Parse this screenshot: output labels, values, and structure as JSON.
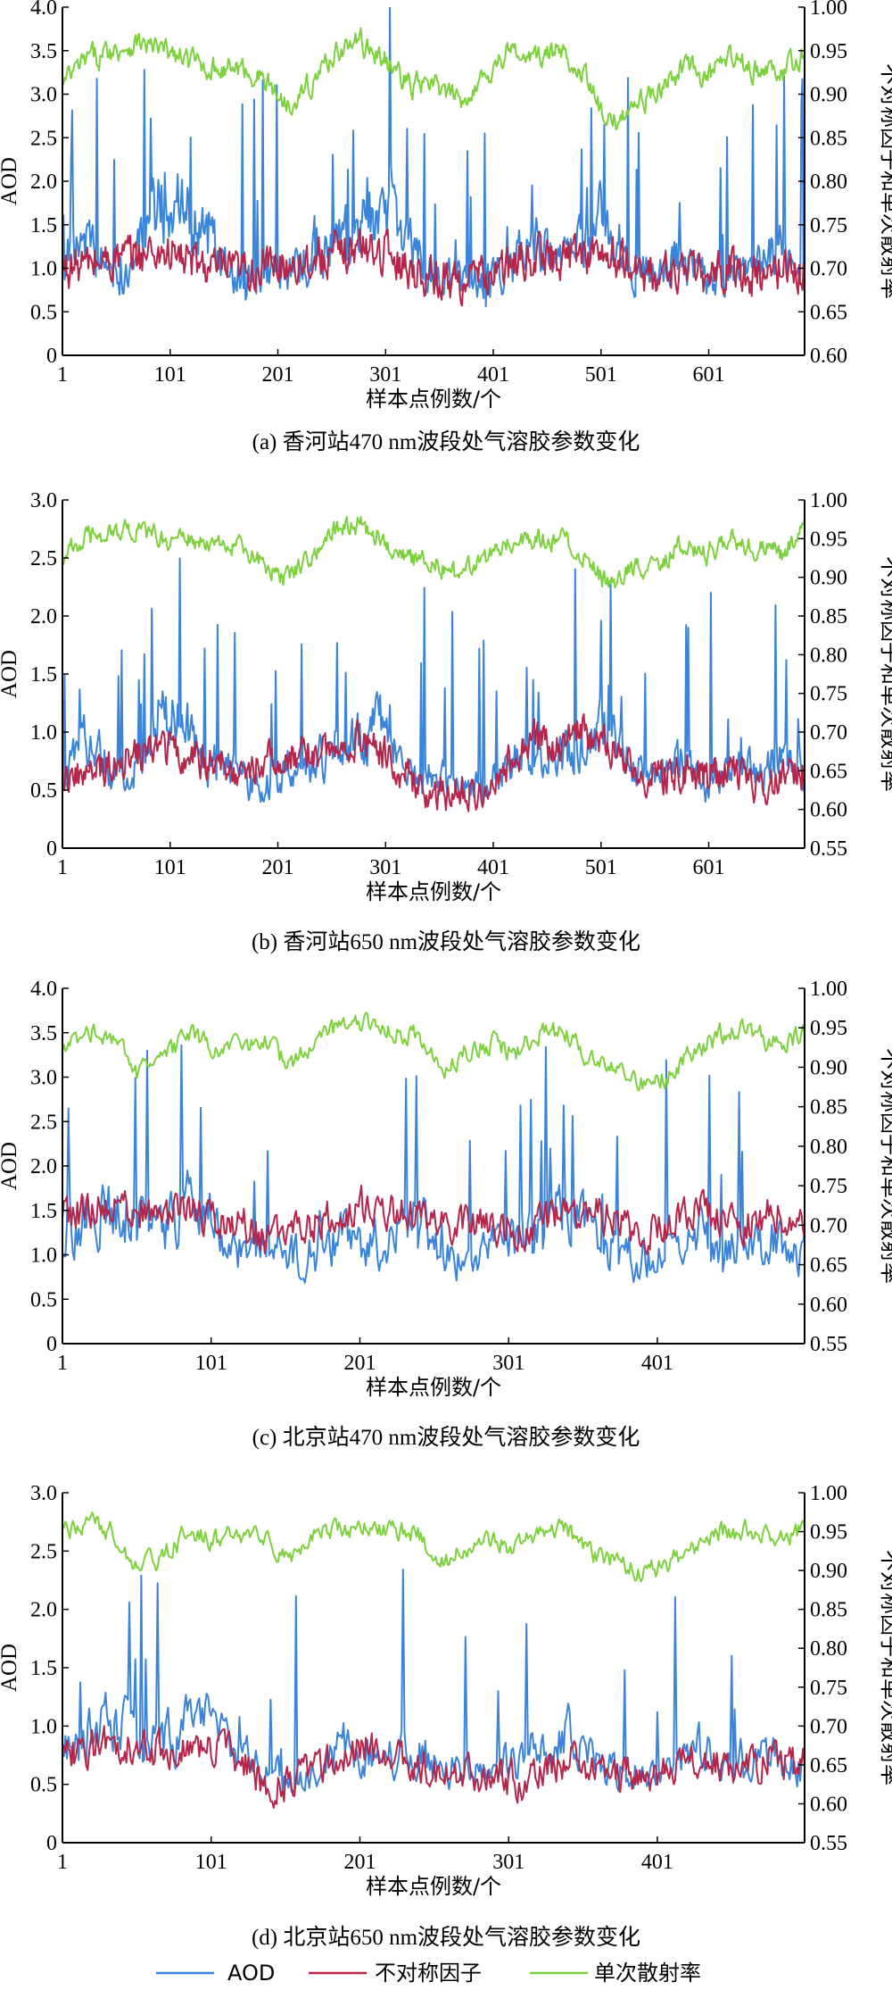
{
  "legend": [
    {
      "name": "AOD",
      "color": "#3a84d9"
    },
    {
      "name": "不对称因子",
      "color": "#b5264a"
    },
    {
      "name": "单次散射率",
      "color": "#7ed13e"
    }
  ],
  "chart_data": [
    {
      "type": "line",
      "title": "(a) 香河站470 nm波段处气溶胶参数变化",
      "xlabel": "样本点例数/个",
      "ylabel": "AOD",
      "y2label": "不对称因子和单次散射率",
      "xlim": [
        1,
        690
      ],
      "xticks": [
        "1",
        "101",
        "201",
        "301",
        "401",
        "501",
        "601"
      ],
      "ylim": [
        0,
        4.0
      ],
      "yticks": [
        "0",
        "0.5",
        "1.0",
        "1.5",
        "2.0",
        "2.5",
        "3.0",
        "3.5",
        "4.0"
      ],
      "y2lim": [
        0.6,
        1.0
      ],
      "y2ticks": [
        "0.60",
        "0.65",
        "0.70",
        "0.75",
        "0.80",
        "0.85",
        "0.90",
        "0.95",
        "1.00"
      ],
      "series": [
        {
          "name": "AOD",
          "axis": "left",
          "color": "#3a84d9",
          "x": [
            1,
            24,
            47,
            70,
            93,
            116,
            139,
            162,
            185,
            208,
            231,
            254,
            277,
            300,
            323,
            346,
            369,
            392,
            415,
            438,
            461,
            484,
            507,
            530,
            553,
            576,
            599,
            622,
            645,
            668,
            690
          ],
          "values": [
            0.9,
            1.3,
            0.8,
            1.1,
            1.7,
            1.6,
            1.2,
            0.9,
            0.8,
            0.9,
            1.1,
            1.2,
            1.4,
            1.7,
            1.2,
            0.9,
            0.8,
            0.8,
            1.0,
            1.2,
            1.0,
            1.3,
            1.5,
            1.0,
            0.9,
            1.1,
            0.8,
            1.0,
            0.9,
            1.2,
            0.9
          ]
        },
        {
          "name": "不对称因子",
          "axis": "right",
          "color": "#b5264a",
          "x": [
            1,
            24,
            47,
            70,
            93,
            116,
            139,
            162,
            185,
            208,
            231,
            254,
            277,
            300,
            323,
            346,
            369,
            392,
            415,
            438,
            461,
            484,
            507,
            530,
            553,
            576,
            599,
            622,
            645,
            668,
            690
          ],
          "values": [
            0.7,
            0.705,
            0.71,
            0.715,
            0.72,
            0.71,
            0.7,
            0.695,
            0.7,
            0.705,
            0.71,
            0.715,
            0.725,
            0.72,
            0.7,
            0.69,
            0.685,
            0.69,
            0.7,
            0.715,
            0.71,
            0.72,
            0.715,
            0.7,
            0.69,
            0.7,
            0.69,
            0.7,
            0.69,
            0.7,
            0.695
          ]
        },
        {
          "name": "单次散射率",
          "axis": "right",
          "color": "#7ed13e",
          "x": [
            1,
            24,
            47,
            70,
            93,
            116,
            139,
            162,
            185,
            208,
            231,
            254,
            277,
            300,
            323,
            346,
            369,
            392,
            415,
            438,
            461,
            484,
            507,
            530,
            553,
            576,
            599,
            622,
            645,
            668,
            690
          ],
          "values": [
            0.91,
            0.94,
            0.95,
            0.96,
            0.95,
            0.94,
            0.93,
            0.93,
            0.92,
            0.89,
            0.91,
            0.95,
            0.96,
            0.94,
            0.91,
            0.91,
            0.89,
            0.92,
            0.95,
            0.94,
            0.95,
            0.93,
            0.86,
            0.89,
            0.9,
            0.93,
            0.92,
            0.94,
            0.93,
            0.92,
            0.95
          ]
        }
      ]
    },
    {
      "type": "line",
      "title": "(b) 香河站650 nm波段处气溶胶参数变化",
      "xlabel": "样本点例数/个",
      "ylabel": "AOD",
      "y2label": "不对称因子和单次散射率",
      "xlim": [
        1,
        690
      ],
      "xticks": [
        "1",
        "101",
        "201",
        "301",
        "401",
        "501",
        "601"
      ],
      "ylim": [
        0,
        3.0
      ],
      "yticks": [
        "0",
        "0.5",
        "1.0",
        "1.5",
        "2.0",
        "2.5",
        "3.0"
      ],
      "y2lim": [
        0.55,
        1.0
      ],
      "y2ticks": [
        "0.55",
        "0.60",
        "0.65",
        "0.70",
        "0.75",
        "0.80",
        "0.85",
        "0.90",
        "0.95",
        "1.00"
      ],
      "series": [
        {
          "name": "AOD",
          "axis": "left",
          "color": "#3a84d9",
          "x": [
            1,
            24,
            47,
            70,
            93,
            116,
            139,
            162,
            185,
            208,
            231,
            254,
            277,
            300,
            323,
            346,
            369,
            392,
            415,
            438,
            461,
            484,
            507,
            530,
            553,
            576,
            599,
            622,
            645,
            668,
            690
          ],
          "values": [
            0.6,
            0.9,
            0.6,
            0.7,
            1.1,
            1.0,
            0.7,
            0.6,
            0.5,
            0.6,
            0.7,
            0.8,
            0.9,
            1.1,
            0.7,
            0.6,
            0.5,
            0.5,
            0.7,
            0.8,
            0.7,
            0.9,
            1.0,
            0.7,
            0.6,
            0.7,
            0.5,
            0.7,
            0.6,
            0.8,
            0.6
          ]
        },
        {
          "name": "不对称因子",
          "axis": "right",
          "color": "#b5264a",
          "x": [
            1,
            24,
            47,
            70,
            93,
            116,
            139,
            162,
            185,
            208,
            231,
            254,
            277,
            300,
            323,
            346,
            369,
            392,
            415,
            438,
            461,
            484,
            507,
            530,
            553,
            576,
            599,
            622,
            645,
            668,
            690
          ],
          "values": [
            0.65,
            0.64,
            0.66,
            0.67,
            0.68,
            0.67,
            0.66,
            0.65,
            0.66,
            0.67,
            0.67,
            0.68,
            0.69,
            0.67,
            0.64,
            0.62,
            0.62,
            0.63,
            0.66,
            0.69,
            0.68,
            0.7,
            0.68,
            0.65,
            0.64,
            0.65,
            0.64,
            0.65,
            0.63,
            0.64,
            0.65
          ]
        },
        {
          "name": "单次散射率",
          "axis": "right",
          "color": "#7ed13e",
          "x": [
            1,
            24,
            47,
            70,
            93,
            116,
            139,
            162,
            185,
            208,
            231,
            254,
            277,
            300,
            323,
            346,
            369,
            392,
            415,
            438,
            461,
            484,
            507,
            530,
            553,
            576,
            599,
            622,
            645,
            668,
            690
          ],
          "values": [
            0.93,
            0.95,
            0.96,
            0.96,
            0.95,
            0.95,
            0.94,
            0.94,
            0.92,
            0.9,
            0.93,
            0.96,
            0.97,
            0.95,
            0.92,
            0.92,
            0.9,
            0.92,
            0.95,
            0.95,
            0.95,
            0.93,
            0.89,
            0.91,
            0.92,
            0.94,
            0.93,
            0.95,
            0.94,
            0.93,
            0.96
          ]
        }
      ]
    },
    {
      "type": "line",
      "title": "(c) 北京站470 nm波段处气溶胶参数变化",
      "xlabel": "样本点例数/个",
      "ylabel": "AOD",
      "y2label": "不对称因子和单次散射率",
      "xlim": [
        1,
        500
      ],
      "xticks": [
        "1",
        "101",
        "201",
        "301",
        "401"
      ],
      "ylim": [
        0,
        4.0
      ],
      "yticks": [
        "0",
        "0.5",
        "1.0",
        "1.5",
        "2.0",
        "2.5",
        "3.0",
        "3.5",
        "4.0"
      ],
      "y2lim": [
        0.55,
        1.0
      ],
      "y2ticks": [
        "0.55",
        "0.60",
        "0.65",
        "0.70",
        "0.75",
        "0.80",
        "0.85",
        "0.90",
        "0.95",
        "1.00"
      ],
      "series": [
        {
          "name": "AOD",
          "axis": "left",
          "color": "#3a84d9",
          "x": [
            1,
            18,
            35,
            52,
            69,
            86,
            103,
            120,
            137,
            154,
            171,
            188,
            205,
            222,
            239,
            256,
            273,
            290,
            307,
            324,
            341,
            358,
            375,
            392,
            409,
            426,
            443,
            460,
            477,
            500
          ],
          "values": [
            1.1,
            1.4,
            1.5,
            1.3,
            1.2,
            1.5,
            1.3,
            1.0,
            1.0,
            0.9,
            1.0,
            1.2,
            1.1,
            1.1,
            1.3,
            1.0,
            0.9,
            1.0,
            1.1,
            1.2,
            1.4,
            1.1,
            1.0,
            0.9,
            1.0,
            1.2,
            1.1,
            1.0,
            1.1,
            1.0
          ]
        },
        {
          "name": "不对称因子",
          "axis": "right",
          "color": "#b5264a",
          "x": [
            1,
            18,
            35,
            52,
            69,
            86,
            103,
            120,
            137,
            154,
            171,
            188,
            205,
            222,
            239,
            256,
            273,
            290,
            307,
            324,
            341,
            358,
            375,
            392,
            409,
            426,
            443,
            460,
            477,
            500
          ],
          "values": [
            0.71,
            0.72,
            0.725,
            0.72,
            0.715,
            0.715,
            0.71,
            0.705,
            0.68,
            0.69,
            0.7,
            0.715,
            0.725,
            0.72,
            0.71,
            0.705,
            0.7,
            0.7,
            0.69,
            0.705,
            0.72,
            0.715,
            0.705,
            0.69,
            0.7,
            0.72,
            0.71,
            0.7,
            0.715,
            0.71
          ]
        },
        {
          "name": "单次散射率",
          "axis": "right",
          "color": "#7ed13e",
          "x": [
            1,
            18,
            35,
            52,
            69,
            86,
            103,
            120,
            137,
            154,
            171,
            188,
            205,
            222,
            239,
            256,
            273,
            290,
            307,
            324,
            341,
            358,
            375,
            392,
            409,
            426,
            443,
            460,
            477,
            500
          ],
          "values": [
            0.92,
            0.95,
            0.94,
            0.89,
            0.91,
            0.94,
            0.93,
            0.92,
            0.93,
            0.9,
            0.94,
            0.95,
            0.96,
            0.95,
            0.94,
            0.9,
            0.92,
            0.93,
            0.92,
            0.95,
            0.94,
            0.91,
            0.9,
            0.88,
            0.89,
            0.92,
            0.94,
            0.95,
            0.93,
            0.94
          ]
        }
      ]
    },
    {
      "type": "line",
      "title": "(d) 北京站650 nm波段处气溶胶参数变化",
      "xlabel": "样本点例数/个",
      "ylabel": "AOD",
      "y2label": "不对称因子和单次散射率",
      "xlim": [
        1,
        500
      ],
      "xticks": [
        "1",
        "101",
        "201",
        "301",
        "401"
      ],
      "ylim": [
        0,
        3.0
      ],
      "yticks": [
        "0",
        "0.5",
        "1.0",
        "1.5",
        "2.0",
        "2.5",
        "3.0"
      ],
      "y2lim": [
        0.55,
        1.0
      ],
      "y2ticks": [
        "0.55",
        "0.60",
        "0.65",
        "0.70",
        "0.75",
        "0.80",
        "0.85",
        "0.90",
        "0.95",
        "1.00"
      ],
      "series": [
        {
          "name": "AOD",
          "axis": "left",
          "color": "#3a84d9",
          "x": [
            1,
            18,
            35,
            52,
            69,
            86,
            103,
            120,
            137,
            154,
            171,
            188,
            205,
            222,
            239,
            256,
            273,
            290,
            307,
            324,
            341,
            358,
            375,
            392,
            409,
            426,
            443,
            460,
            477,
            500
          ],
          "values": [
            0.7,
            0.9,
            1.0,
            0.9,
            0.8,
            1.0,
            0.9,
            0.7,
            0.6,
            0.5,
            0.6,
            0.8,
            0.7,
            0.7,
            0.8,
            0.6,
            0.6,
            0.6,
            0.7,
            0.8,
            0.9,
            0.7,
            0.6,
            0.6,
            0.6,
            0.8,
            0.7,
            0.6,
            0.7,
            0.6
          ]
        },
        {
          "name": "不对称因子",
          "axis": "right",
          "color": "#b5264a",
          "x": [
            1,
            18,
            35,
            52,
            69,
            86,
            103,
            120,
            137,
            154,
            171,
            188,
            205,
            222,
            239,
            256,
            273,
            290,
            307,
            324,
            341,
            358,
            375,
            392,
            409,
            426,
            443,
            460,
            477,
            500
          ],
          "values": [
            0.66,
            0.67,
            0.68,
            0.67,
            0.67,
            0.68,
            0.67,
            0.66,
            0.62,
            0.63,
            0.65,
            0.66,
            0.67,
            0.66,
            0.65,
            0.64,
            0.64,
            0.64,
            0.63,
            0.64,
            0.66,
            0.65,
            0.64,
            0.63,
            0.64,
            0.66,
            0.65,
            0.64,
            0.66,
            0.65
          ]
        },
        {
          "name": "单次散射率",
          "axis": "right",
          "color": "#7ed13e",
          "x": [
            1,
            18,
            35,
            52,
            69,
            86,
            103,
            120,
            137,
            154,
            171,
            188,
            205,
            222,
            239,
            256,
            273,
            290,
            307,
            324,
            341,
            358,
            375,
            392,
            409,
            426,
            443,
            460,
            477,
            500
          ],
          "values": [
            0.95,
            0.96,
            0.95,
            0.9,
            0.92,
            0.95,
            0.94,
            0.94,
            0.94,
            0.91,
            0.95,
            0.95,
            0.96,
            0.95,
            0.95,
            0.91,
            0.93,
            0.94,
            0.93,
            0.95,
            0.95,
            0.92,
            0.91,
            0.9,
            0.91,
            0.93,
            0.95,
            0.95,
            0.94,
            0.95
          ]
        }
      ]
    }
  ]
}
